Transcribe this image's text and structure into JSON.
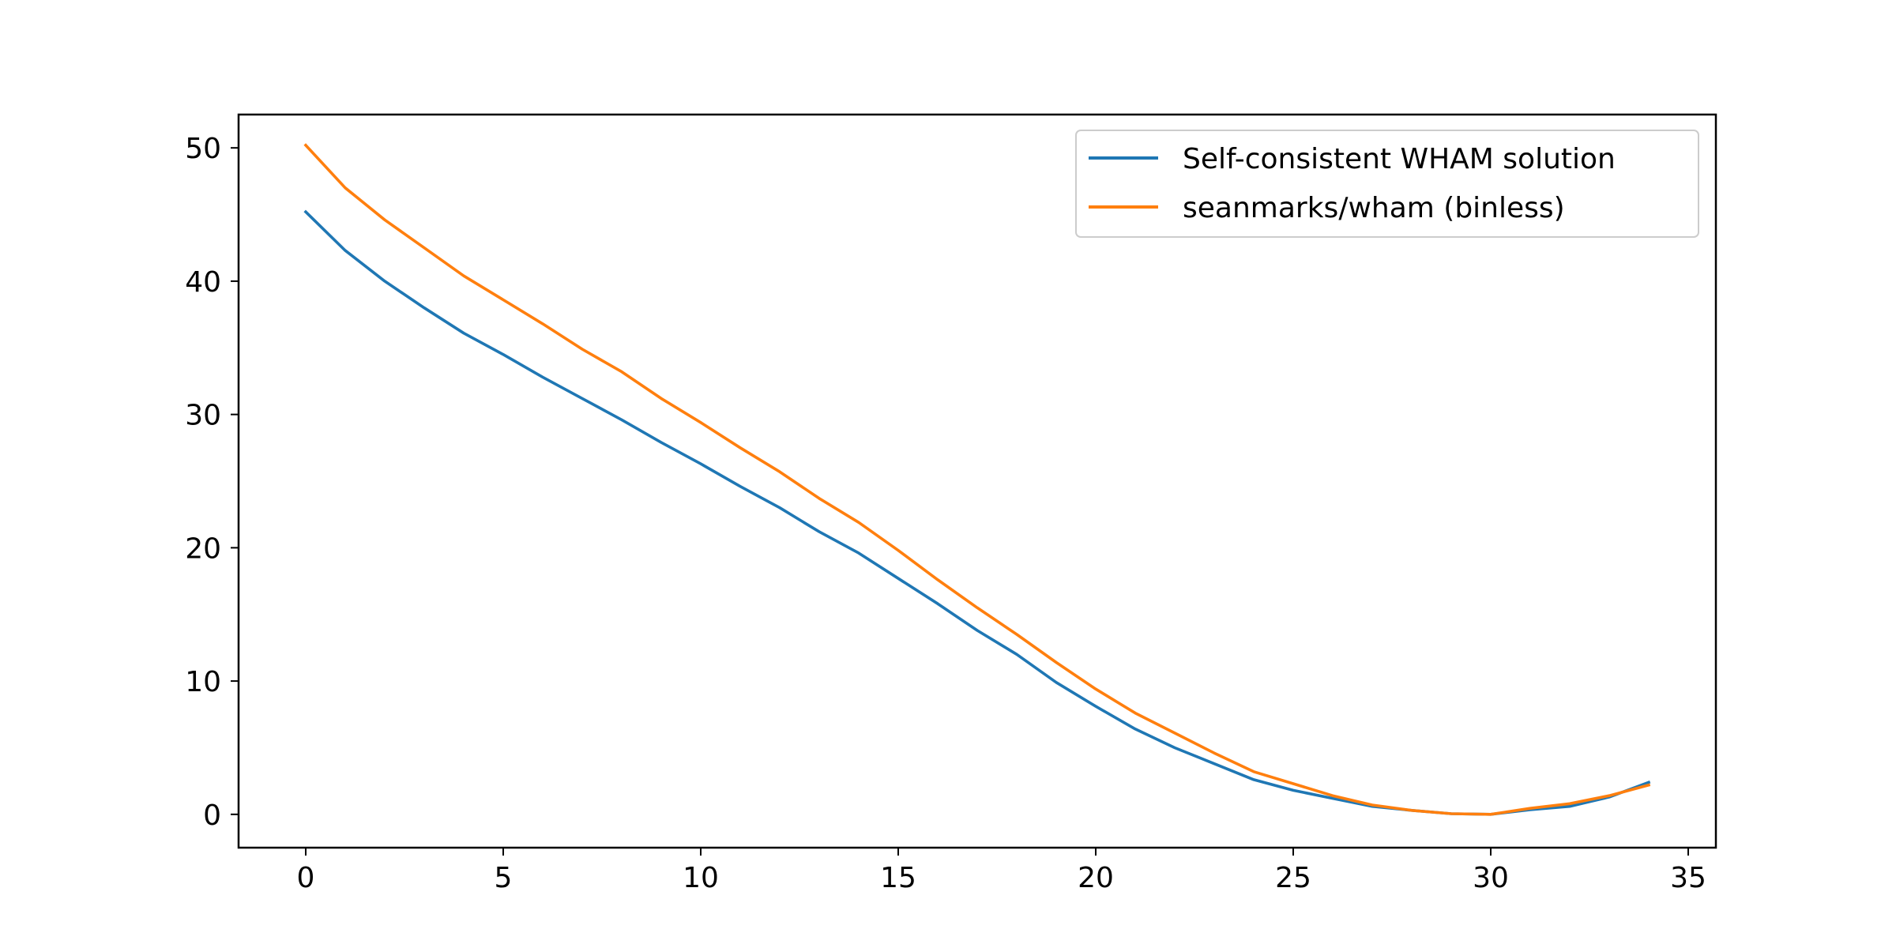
{
  "chart_data": {
    "type": "line",
    "title": "",
    "xlabel": "",
    "ylabel": "",
    "xlim": [
      -1.7,
      35.7
    ],
    "ylim": [
      -2.5,
      52.5
    ],
    "xticks": [
      0,
      5,
      10,
      15,
      20,
      25,
      30,
      35
    ],
    "yticks": [
      0,
      10,
      20,
      30,
      40,
      50
    ],
    "grid": false,
    "legend_position": "top-right",
    "x": [
      0,
      1,
      2,
      3,
      4,
      5,
      6,
      7,
      8,
      9,
      10,
      11,
      12,
      13,
      14,
      15,
      16,
      17,
      18,
      19,
      20,
      21,
      22,
      23,
      24,
      25,
      26,
      27,
      28,
      29,
      30,
      31,
      32,
      33,
      34
    ],
    "series": [
      {
        "name": "Self-consistent WHAM solution",
        "color": "#1f77b4",
        "values": [
          45.2,
          42.3,
          40.0,
          38.0,
          36.1,
          34.5,
          32.8,
          31.2,
          29.6,
          27.9,
          26.3,
          24.6,
          23.0,
          21.2,
          19.6,
          17.7,
          15.8,
          13.8,
          12.0,
          9.9,
          8.1,
          6.4,
          5.0,
          3.8,
          2.6,
          1.8,
          1.2,
          0.6,
          0.3,
          0.05,
          0.0,
          0.35,
          0.6,
          1.3,
          2.4
        ]
      },
      {
        "name": "seanmarks/wham (binless)",
        "color": "#ff7f0e",
        "values": [
          50.2,
          47.0,
          44.6,
          42.5,
          40.4,
          38.6,
          36.8,
          34.9,
          33.2,
          31.2,
          29.4,
          27.5,
          25.7,
          23.7,
          21.9,
          19.8,
          17.6,
          15.5,
          13.5,
          11.4,
          9.4,
          7.6,
          6.1,
          4.6,
          3.2,
          2.3,
          1.4,
          0.7,
          0.3,
          0.05,
          0.0,
          0.45,
          0.8,
          1.4,
          2.2
        ]
      }
    ]
  }
}
